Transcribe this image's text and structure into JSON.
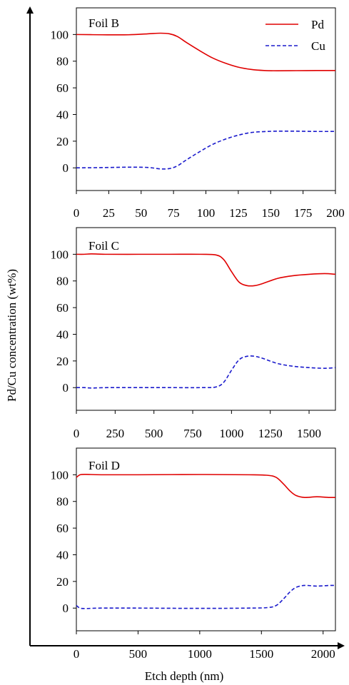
{
  "figure": {
    "shared_y_label": "Pd/Cu concentration (wt%)",
    "shared_x_label": "Etch depth (nm)"
  },
  "legend": {
    "pd_label": "Pd",
    "cu_label": "Cu",
    "pd_color": "#e00000",
    "cu_color": "#1a1acc"
  },
  "chart_data": [
    {
      "type": "line",
      "title": "Foil B",
      "xlabel": "Etch depth (nm)",
      "ylabel": "Pd/Cu concentration (wt%)",
      "xlim": [
        0,
        200
      ],
      "ylim": [
        -17,
        120
      ],
      "xticks": [
        0,
        25,
        50,
        75,
        100,
        125,
        150,
        175,
        200
      ],
      "yticks": [
        0,
        20,
        40,
        60,
        80,
        100
      ],
      "legend": "top-right",
      "series": [
        {
          "name": "Pd",
          "style": "solid",
          "x": [
            0,
            20,
            40,
            55,
            65,
            72,
            78,
            85,
            95,
            105,
            115,
            125,
            135,
            145,
            155,
            170,
            185,
            200
          ],
          "y": [
            100,
            99.8,
            99.8,
            100.5,
            101,
            100.5,
            98.5,
            94,
            88,
            82.5,
            78.5,
            75.5,
            73.8,
            73,
            72.8,
            72.9,
            73,
            73
          ]
        },
        {
          "name": "Cu",
          "style": "dashed",
          "x": [
            0,
            20,
            40,
            55,
            65,
            72,
            78,
            85,
            95,
            105,
            115,
            125,
            135,
            145,
            155,
            170,
            185,
            200
          ],
          "y": [
            0,
            0.2,
            0.5,
            0.3,
            -0.8,
            -0.5,
            1.5,
            6,
            12,
            17.5,
            21.5,
            24.5,
            26.5,
            27.2,
            27.5,
            27.5,
            27.3,
            27.3
          ]
        }
      ]
    },
    {
      "type": "line",
      "title": "Foil C",
      "xlim": [
        0,
        1670
      ],
      "ylim": [
        -17,
        120
      ],
      "xticks": [
        0,
        250,
        500,
        750,
        1000,
        1250,
        1500
      ],
      "yticks": [
        0,
        20,
        40,
        60,
        80,
        100
      ],
      "series": [
        {
          "name": "Pd",
          "style": "solid",
          "x": [
            0,
            50,
            100,
            200,
            400,
            600,
            800,
            900,
            950,
            1000,
            1050,
            1100,
            1150,
            1200,
            1300,
            1400,
            1500,
            1600,
            1670
          ],
          "y": [
            100,
            100,
            100.3,
            100,
            100,
            100,
            100,
            99.5,
            96,
            87,
            79,
            76.5,
            76.5,
            78,
            82,
            84,
            85,
            85.5,
            85
          ]
        },
        {
          "name": "Cu",
          "style": "dashed",
          "x": [
            0,
            50,
            100,
            200,
            400,
            600,
            800,
            900,
            950,
            1000,
            1050,
            1100,
            1150,
            1200,
            1300,
            1400,
            1500,
            1600,
            1670
          ],
          "y": [
            0,
            0,
            -0.3,
            0,
            0,
            0,
            0,
            0.5,
            4,
            13,
            21,
            23.5,
            23.5,
            22,
            18,
            16,
            15,
            14.5,
            15
          ]
        }
      ]
    },
    {
      "type": "line",
      "title": "Foil D",
      "xlim": [
        0,
        2100
      ],
      "ylim": [
        -17,
        120
      ],
      "xticks": [
        0,
        500,
        1000,
        1500,
        2000
      ],
      "yticks": [
        0,
        20,
        40,
        60,
        80,
        100
      ],
      "series": [
        {
          "name": "Pd",
          "style": "solid",
          "x": [
            0,
            30,
            80,
            200,
            500,
            1000,
            1400,
            1550,
            1620,
            1680,
            1730,
            1780,
            1850,
            1950,
            2050,
            2100
          ],
          "y": [
            98,
            100,
            100.3,
            100,
            100,
            100.2,
            100,
            99.6,
            98,
            93,
            88,
            84.5,
            83,
            83.5,
            83,
            83
          ]
        },
        {
          "name": "Cu",
          "style": "dashed",
          "x": [
            0,
            30,
            80,
            200,
            500,
            1000,
            1400,
            1550,
            1620,
            1680,
            1730,
            1780,
            1850,
            1950,
            2050,
            2100
          ],
          "y": [
            2,
            0,
            -0.3,
            0,
            0,
            -0.2,
            0,
            0.4,
            2,
            7,
            12,
            15.5,
            17,
            16.5,
            17,
            17
          ]
        }
      ]
    }
  ]
}
